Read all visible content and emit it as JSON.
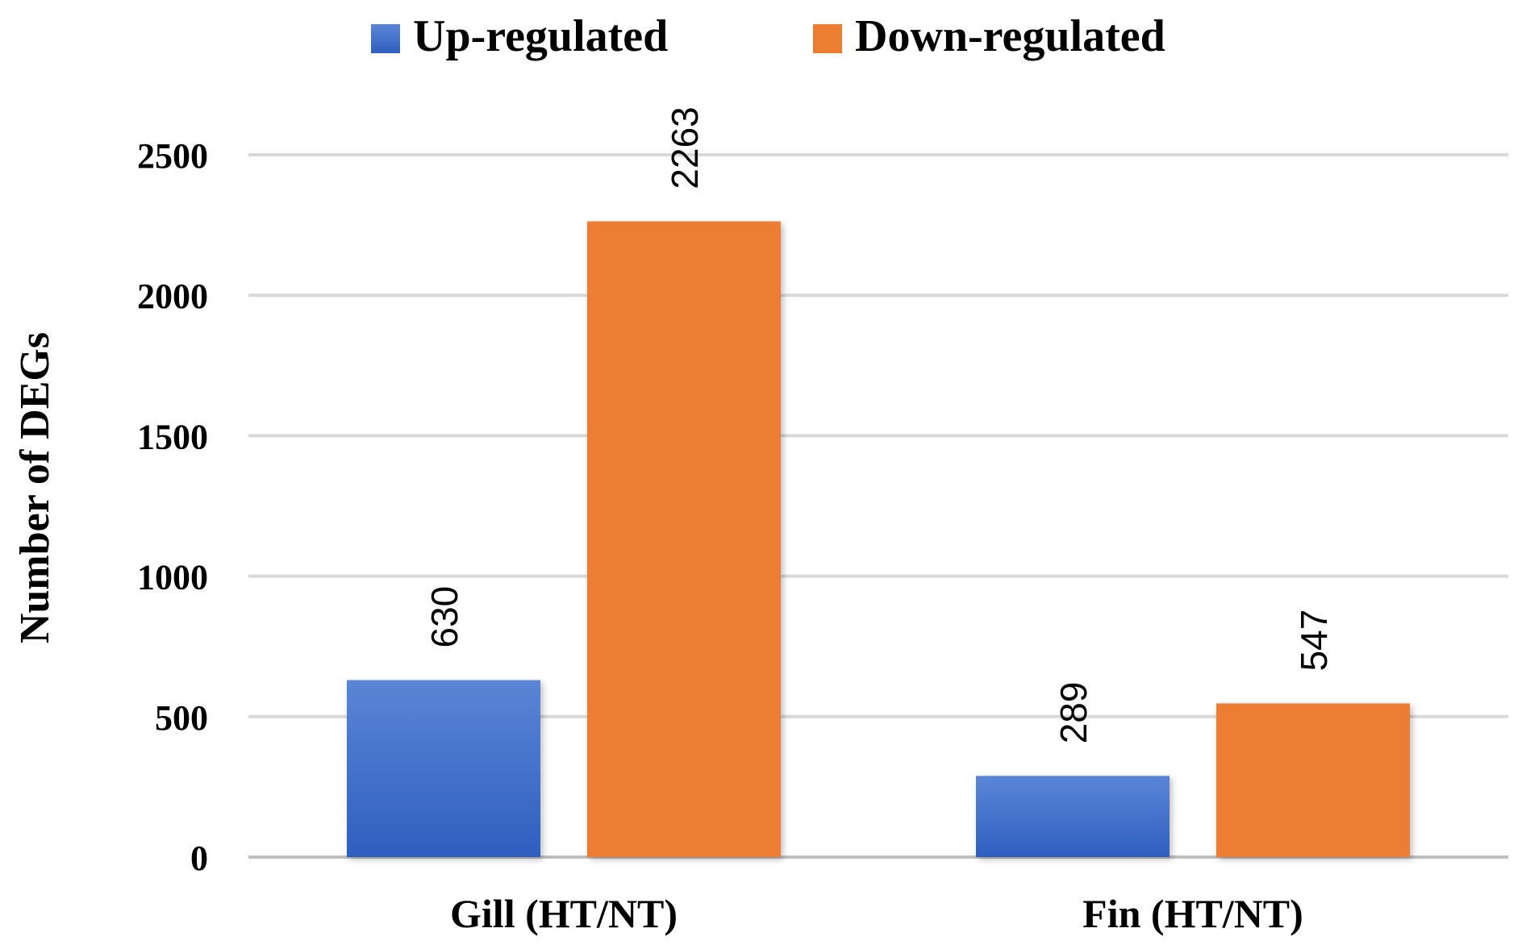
{
  "chart_data": {
    "type": "bar",
    "title": "",
    "xlabel": "",
    "ylabel": "Number of DEGs",
    "categories": [
      "Gill (HT/NT)",
      "Fin (HT/NT)"
    ],
    "series": [
      {
        "name": "Up-regulated",
        "values": [
          630,
          289
        ],
        "color": "#4472C4"
      },
      {
        "name": "Down-regulated",
        "values": [
          2263,
          547
        ],
        "color": "#ED7D31"
      }
    ],
    "ylim": [
      0,
      2500
    ],
    "yticks": [
      "0",
      "500",
      "1000",
      "1500",
      "2000",
      "2500"
    ],
    "grid": true,
    "legend_position": "top-center",
    "data_labels": [
      [
        "630",
        "289"
      ],
      [
        "2263",
        "547"
      ]
    ]
  }
}
